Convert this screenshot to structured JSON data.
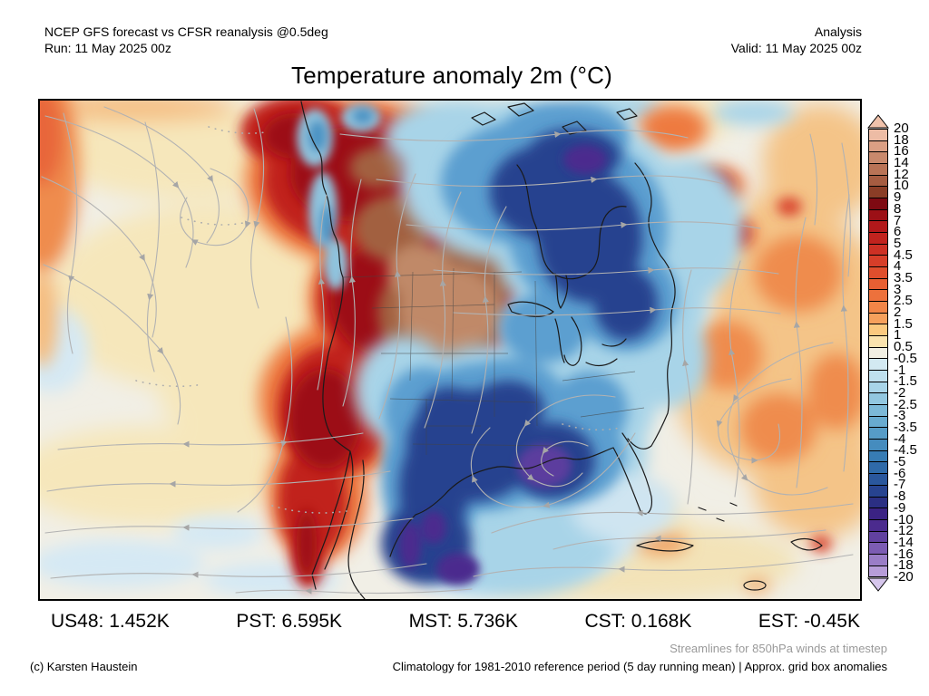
{
  "header": {
    "model_line": "NCEP GFS forecast vs CFSR reanalysis @0.5deg",
    "run_line": "Run: 11 May 2025 00z",
    "mode": "Analysis",
    "valid_line": "Valid: 11 May 2025 00z",
    "title": "Temperature anomaly 2m (°C)"
  },
  "map": {
    "visual_summary": "North America 2m temperature anomaly field (shaded) with gray 850hPa wind streamlines; strong warm anomaly over the western US and NW Canada, cold anomaly over the south-central/southeastern US and eastern Canada/Hudson Bay, warm Atlantic, near-neutral Pacific"
  },
  "colorbar": {
    "units": "°C",
    "labels": [
      "20",
      "18",
      "16",
      "14",
      "12",
      "10",
      "9",
      "8",
      "7",
      "6",
      "5",
      "4.5",
      "4",
      "3.5",
      "3",
      "2.5",
      "2",
      "1.5",
      "1",
      "0.5",
      "-0.5",
      "-1",
      "-1.5",
      "-2",
      "-2.5",
      "-3",
      "-3.5",
      "-4",
      "-4.5",
      "-5",
      "-6",
      "-7",
      "-8",
      "-9",
      "-10",
      "-12",
      "-14",
      "-16",
      "-18",
      "-20"
    ],
    "cell_colors": [
      "#edbca5",
      "#db9f84",
      "#c9896c",
      "#b97356",
      "#a65c41",
      "#8a3d26",
      "#7e0a12",
      "#9c1016",
      "#b2181a",
      "#c1231e",
      "#cd3024",
      "#d73e29",
      "#e04e2d",
      "#e75f33",
      "#ed713c",
      "#f28547",
      "#f6a05c",
      "#fbc97f",
      "#fae3ae",
      "#f1efe3",
      "#d3e9f2",
      "#bfe0ee",
      "#a8d4e8",
      "#92c7e0",
      "#7cb9d8",
      "#68abd0",
      "#569cc7",
      "#458cbe",
      "#377cb4",
      "#2f6aa9",
      "#2a579d",
      "#274390",
      "#2b2f83",
      "#3b2384",
      "#4b2b8e",
      "#61419f",
      "#7c5cb3",
      "#9a7dc7",
      "#b79dd9"
    ],
    "arrow_top_color": "#f0c2ab",
    "arrow_bottom_color": "#d6c6ec"
  },
  "footer": {
    "stats": [
      {
        "region": "US48",
        "value": "1.452K",
        "text": "US48: 1.452K"
      },
      {
        "region": "PST",
        "value": "6.595K",
        "text": "PST: 6.595K"
      },
      {
        "region": "MST",
        "value": "5.736K",
        "text": "MST: 5.736K"
      },
      {
        "region": "CST",
        "value": "0.168K",
        "text": "CST: 0.168K"
      },
      {
        "region": "EST",
        "value": "-0.45K",
        "text": "EST: -0.45K"
      }
    ],
    "streamline_note": "Streamlines for 850hPa winds at timestep",
    "copyright": "(c) Karsten Haustein",
    "climatology_note": "Climatology for 1981-2010 reference period (5 day running mean) | Approx. grid box anomalies"
  },
  "colors": {
    "note_gray": "#9a9a9a",
    "warm_core_brown": "#c08968",
    "warm_red": "#c1231e",
    "cold_dark_blue": "#274390",
    "cold_purple": "#4b2b8e",
    "streamline_gray": "#b2b2b2"
  }
}
